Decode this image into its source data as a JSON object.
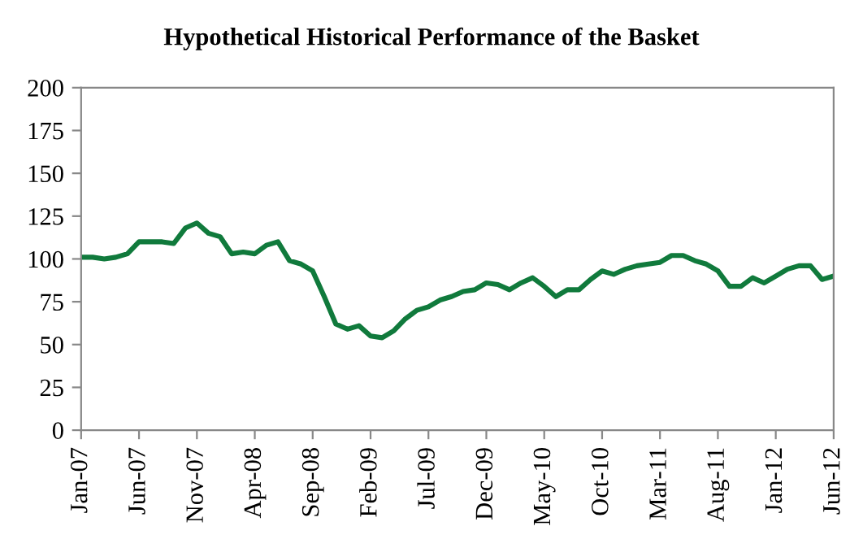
{
  "chart_data": {
    "type": "line",
    "title": "Hypothetical Historical Performance of the Basket",
    "categories": [
      "Jan-07",
      null,
      null,
      null,
      null,
      "Jun-07",
      null,
      null,
      null,
      null,
      "Nov-07",
      null,
      null,
      null,
      null,
      "Apr-08",
      null,
      null,
      null,
      null,
      "Sep-08",
      null,
      null,
      null,
      null,
      "Feb-09",
      null,
      null,
      null,
      null,
      "Jul-09",
      null,
      null,
      null,
      null,
      "Dec-09",
      null,
      null,
      null,
      null,
      "May-10",
      null,
      null,
      null,
      null,
      "Oct-10",
      null,
      null,
      null,
      null,
      "Mar-11",
      null,
      null,
      null,
      null,
      "Aug-11",
      null,
      null,
      null,
      null,
      "Jan-12",
      null,
      null,
      null,
      null,
      "Jun-12"
    ],
    "series": [
      {
        "color": "#107a3c",
        "values": [
          101,
          101,
          100,
          101,
          103,
          110,
          110,
          110,
          109,
          118,
          121,
          115,
          113,
          103,
          104,
          103,
          108,
          110,
          99,
          97,
          93,
          78,
          62,
          59,
          61,
          55,
          54,
          58,
          65,
          70,
          72,
          76,
          78,
          81,
          82,
          86,
          85,
          82,
          86,
          89,
          84,
          78,
          82,
          82,
          88,
          93,
          91,
          94,
          96,
          97,
          98,
          102,
          102,
          99,
          97,
          93,
          84,
          84,
          89,
          86,
          90,
          94,
          96,
          96,
          88,
          90
        ]
      }
    ],
    "ylim": [
      0,
      200
    ],
    "yticks": [
      0,
      25,
      50,
      75,
      100,
      125,
      150,
      175,
      200
    ],
    "grid": false,
    "legend": false,
    "marker": "none",
    "line_style": "solid"
  }
}
